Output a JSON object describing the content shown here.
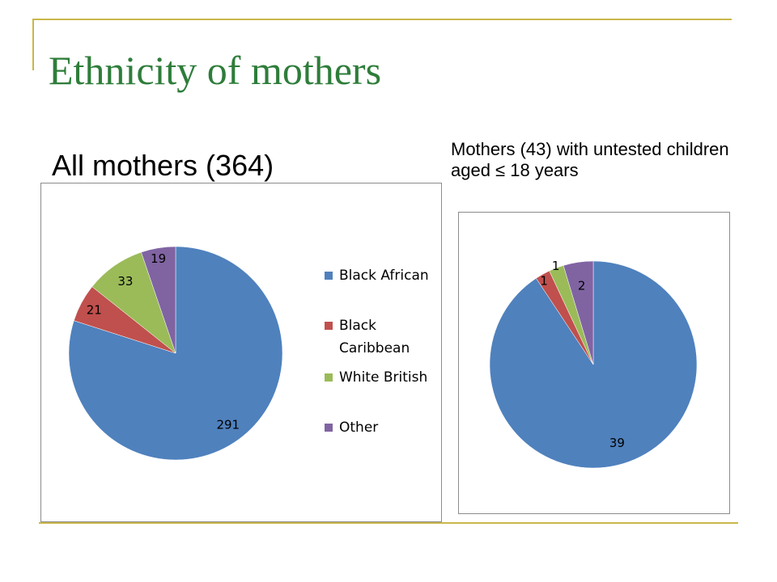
{
  "slide": {
    "title": "Ethnicity of mothers",
    "caption_left": "All mothers (364)",
    "caption_right": "Mothers (43) with untested children aged ≤ 18 years"
  },
  "colors": {
    "title": "#2e7d3a",
    "accent_line": "#c9b74a",
    "black_african": "#4f81bd",
    "black_caribbean": "#c0504d",
    "white_british": "#9bbb59",
    "other": "#8064a2"
  },
  "chart_data": [
    {
      "type": "pie",
      "categories": [
        "Black African",
        "Black Caribbean",
        "White British",
        "Other"
      ],
      "values": [
        291,
        21,
        33,
        19
      ],
      "legend": [
        "Black African",
        "Black Caribbean",
        "White British",
        "Other"
      ],
      "legend_placement": "right",
      "start": "12 o'clock, clockwise"
    },
    {
      "type": "pie",
      "categories": [
        "Black African",
        "Black Caribbean",
        "White British",
        "Other"
      ],
      "values": [
        39,
        1,
        1,
        2
      ],
      "legend": [],
      "start": "12 o'clock, clockwise"
    }
  ]
}
